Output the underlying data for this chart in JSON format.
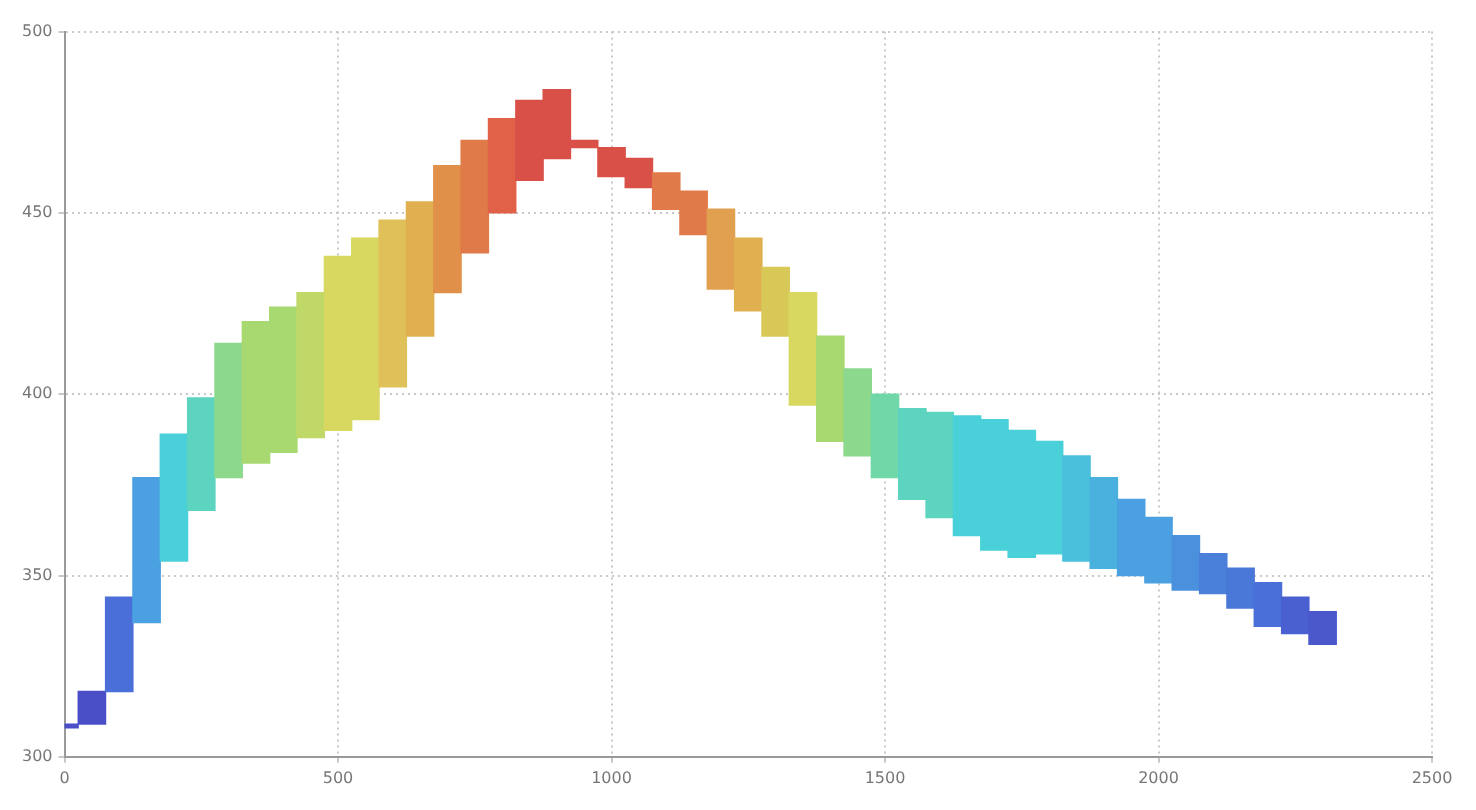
{
  "chart_data": {
    "type": "bar",
    "x": [
      0,
      50,
      100,
      150,
      200,
      250,
      300,
      350,
      400,
      450,
      500,
      550,
      600,
      650,
      700,
      750,
      800,
      850,
      900,
      950,
      1000,
      1050,
      1100,
      1150,
      1200,
      1250,
      1300,
      1350,
      1400,
      1450,
      1500,
      1550,
      1600,
      1650,
      1700,
      1750,
      1800,
      1850,
      1900,
      1950,
      2000,
      2050,
      2100,
      2150,
      2200,
      2250,
      2300
    ],
    "base": [
      308,
      309,
      318,
      337,
      354,
      368,
      377,
      381,
      384,
      388,
      390,
      393,
      402,
      416,
      428,
      439,
      450,
      459,
      465,
      468,
      460,
      457,
      451,
      444,
      429,
      423,
      416,
      397,
      387,
      383,
      377,
      371,
      366,
      361,
      357,
      355,
      356,
      354,
      352,
      350,
      348,
      346,
      345,
      341,
      336,
      334,
      331
    ],
    "values": [
      1,
      9,
      26,
      40,
      35,
      31,
      37,
      39,
      40,
      40,
      48,
      50,
      46,
      37,
      35,
      31,
      26,
      22,
      19,
      2,
      8,
      8,
      10,
      12,
      22,
      20,
      19,
      31,
      29,
      24,
      23,
      25,
      29,
      33,
      36,
      35,
      31,
      29,
      25,
      21,
      18,
      15,
      11,
      11,
      12,
      10,
      9
    ],
    "colors": [
      "#4a4fc8",
      "#4a4fc8",
      "#4a6fd8",
      "#4aa0e0",
      "#4ad0d8",
      "#5cd4c0",
      "#8cd88c",
      "#a8d870",
      "#a8d870",
      "#c0d868",
      "#d8d860",
      "#d8d860",
      "#e0c058",
      "#e0b050",
      "#e09048",
      "#e07a48",
      "#e06048",
      "#d85048",
      "#d85048",
      "#d85048",
      "#d85048",
      "#d85048",
      "#e07a48",
      "#e07a48",
      "#e0a050",
      "#e0b050",
      "#d8c858",
      "#d8d860",
      "#a8d870",
      "#8cd88c",
      "#70d8a8",
      "#5cd4c0",
      "#5cd4c0",
      "#4ad0d8",
      "#4ad0d8",
      "#4ad0d8",
      "#4ad0d8",
      "#4ac0dc",
      "#4ab0de",
      "#4aa0e0",
      "#4aa0e0",
      "#4a90dd",
      "#4a80da",
      "#4a78d8",
      "#4a6fd8",
      "#4a60d0",
      "#4a58cc"
    ],
    "xlim": [
      0,
      2500
    ],
    "xticks": [
      0,
      500,
      1000,
      1500,
      2000,
      2500
    ],
    "ylim": [
      300,
      500
    ],
    "yticks": [
      300,
      350,
      400,
      450,
      500
    ],
    "grid": true
  }
}
